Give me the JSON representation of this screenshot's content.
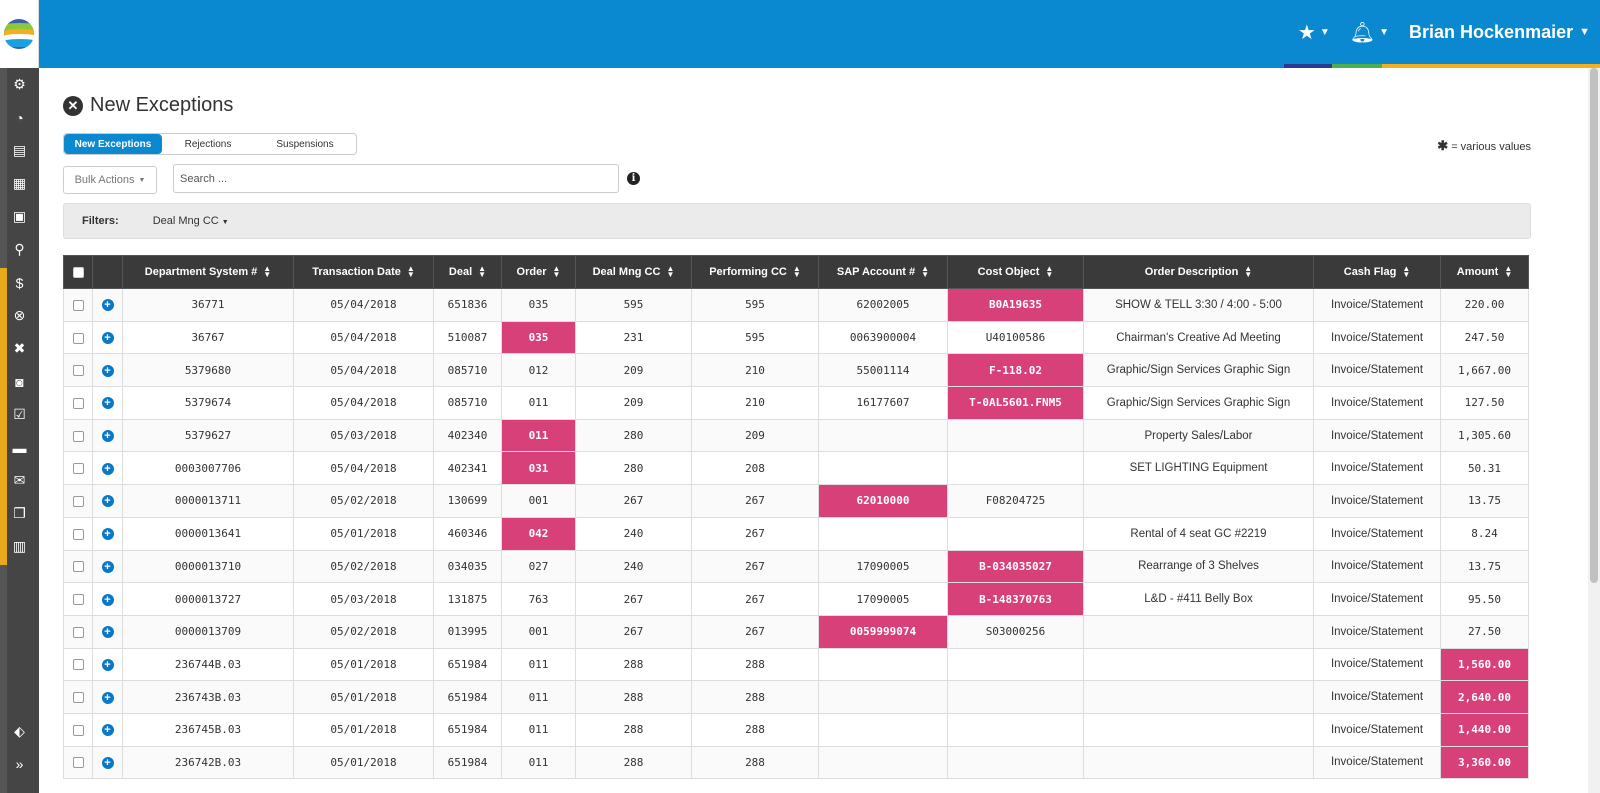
{
  "header": {
    "user_name": "Brian Hockenmaier",
    "favorites_icon": "star-icon",
    "notifications_icon": "bell-icon",
    "strip_colors": [
      "#2b3990",
      "#0a88d0",
      "#4cae4c",
      "#f2b01e"
    ]
  },
  "sidebar": {
    "items": [
      {
        "icon": "gear-icon",
        "glyph": "⚙"
      },
      {
        "icon": "dashboard-icon",
        "glyph": "◔"
      },
      {
        "icon": "book-icon",
        "glyph": "▤"
      },
      {
        "icon": "grid-icon",
        "glyph": "▦"
      },
      {
        "icon": "money-icon",
        "glyph": "▣"
      },
      {
        "icon": "search-icon",
        "glyph": "⚲"
      },
      {
        "icon": "dollar-icon",
        "glyph": "$"
      },
      {
        "icon": "exception-icon",
        "glyph": "⊗"
      },
      {
        "icon": "close-icon",
        "glyph": "✖"
      },
      {
        "icon": "pause-icon",
        "glyph": "◙"
      },
      {
        "icon": "checkbox-icon",
        "glyph": "☑"
      },
      {
        "icon": "credit-card-icon",
        "glyph": "▬"
      },
      {
        "icon": "envelope-icon",
        "glyph": "✉"
      },
      {
        "icon": "copy-icon",
        "glyph": "❐"
      },
      {
        "icon": "bar-chart-icon",
        "glyph": "▥"
      }
    ],
    "bottom_items": [
      {
        "icon": "tag-icon",
        "glyph": "⬖"
      },
      {
        "icon": "expand-icon",
        "glyph": "»"
      }
    ],
    "accent_color": "#e8a91b"
  },
  "page": {
    "title": "New Exceptions",
    "tabs": [
      "New Exceptions",
      "Rejections",
      "Suspensions"
    ],
    "various_values_note": "= various values",
    "bulk_actions_label": "Bulk Actions",
    "search_placeholder": "Search ...",
    "filters_label": "Filters:",
    "filter_dropdown": "Deal Mng CC"
  },
  "table": {
    "columns": [
      "Department System #",
      "Transaction Date",
      "Deal",
      "Order",
      "Deal Mng CC",
      "Performing CC",
      "SAP Account #",
      "Cost Object",
      "Order Description",
      "Cash Flag",
      "Amount"
    ],
    "highlight_color": "#d8407a",
    "rows": [
      {
        "cells": [
          "36771",
          "05/04/2018",
          "651836",
          "035",
          "595",
          "595",
          "62002005",
          "B0A19635",
          "SHOW & TELL 3:30 / 4:00 - 5:00",
          "Invoice/Statement",
          "220.00"
        ],
        "hl": [
          7
        ]
      },
      {
        "cells": [
          "36767",
          "05/04/2018",
          "510087",
          "035",
          "231",
          "595",
          "0063900004",
          "U40100586",
          "Chairman's Creative Ad Meeting",
          "Invoice/Statement",
          "247.50"
        ],
        "hl": [
          3
        ]
      },
      {
        "cells": [
          "5379680",
          "05/04/2018",
          "085710",
          "012",
          "209",
          "210",
          "55001114",
          "F-118.02",
          "Graphic/Sign Services Graphic Sign",
          "Invoice/Statement",
          "1,667.00"
        ],
        "hl": [
          7
        ]
      },
      {
        "cells": [
          "5379674",
          "05/04/2018",
          "085710",
          "011",
          "209",
          "210",
          "16177607",
          "T-0AL5601.FNM5",
          "Graphic/Sign Services Graphic Sign",
          "Invoice/Statement",
          "127.50"
        ],
        "hl": [
          7
        ]
      },
      {
        "cells": [
          "5379627",
          "05/03/2018",
          "402340",
          "011",
          "280",
          "209",
          "",
          "",
          "Property Sales/Labor",
          "Invoice/Statement",
          "1,305.60"
        ],
        "hl": [
          3
        ]
      },
      {
        "cells": [
          "0003007706",
          "05/04/2018",
          "402341",
          "031",
          "280",
          "208",
          "",
          "",
          "SET LIGHTING Equipment",
          "Invoice/Statement",
          "50.31"
        ],
        "hl": [
          3
        ]
      },
      {
        "cells": [
          "0000013711",
          "05/02/2018",
          "130699",
          "001",
          "267",
          "267",
          "62010000",
          "F08204725",
          "",
          "Invoice/Statement",
          "13.75"
        ],
        "hl": [
          6
        ]
      },
      {
        "cells": [
          "0000013641",
          "05/01/2018",
          "460346",
          "042",
          "240",
          "267",
          "",
          "",
          "Rental of 4 seat GC #2219",
          "Invoice/Statement",
          "8.24"
        ],
        "hl": [
          3
        ]
      },
      {
        "cells": [
          "0000013710",
          "05/02/2018",
          "034035",
          "027",
          "240",
          "267",
          "17090005",
          "B-034035027",
          "Rearrange of 3 Shelves",
          "Invoice/Statement",
          "13.75"
        ],
        "hl": [
          7
        ]
      },
      {
        "cells": [
          "0000013727",
          "05/03/2018",
          "131875",
          "763",
          "267",
          "267",
          "17090005",
          "B-148370763",
          "L&D - #411 Belly Box",
          "Invoice/Statement",
          "95.50"
        ],
        "hl": [
          7
        ]
      },
      {
        "cells": [
          "0000013709",
          "05/02/2018",
          "013995",
          "001",
          "267",
          "267",
          "0059999074",
          "S03000256",
          "",
          "Invoice/Statement",
          "27.50"
        ],
        "hl": [
          6
        ]
      },
      {
        "cells": [
          "236744B.03",
          "05/01/2018",
          "651984",
          "011",
          "288",
          "288",
          "",
          "",
          "",
          "Invoice/Statement",
          "1,560.00"
        ],
        "hl": [
          10
        ]
      },
      {
        "cells": [
          "236743B.03",
          "05/01/2018",
          "651984",
          "011",
          "288",
          "288",
          "",
          "",
          "",
          "Invoice/Statement",
          "2,640.00"
        ],
        "hl": [
          10
        ]
      },
      {
        "cells": [
          "236745B.03",
          "05/01/2018",
          "651984",
          "011",
          "288",
          "288",
          "",
          "",
          "",
          "Invoice/Statement",
          "1,440.00"
        ],
        "hl": [
          10
        ]
      },
      {
        "cells": [
          "236742B.03",
          "05/01/2018",
          "651984",
          "011",
          "288",
          "288",
          "",
          "",
          "",
          "Invoice/Statement",
          "3,360.00"
        ],
        "hl": [
          10
        ]
      }
    ]
  }
}
